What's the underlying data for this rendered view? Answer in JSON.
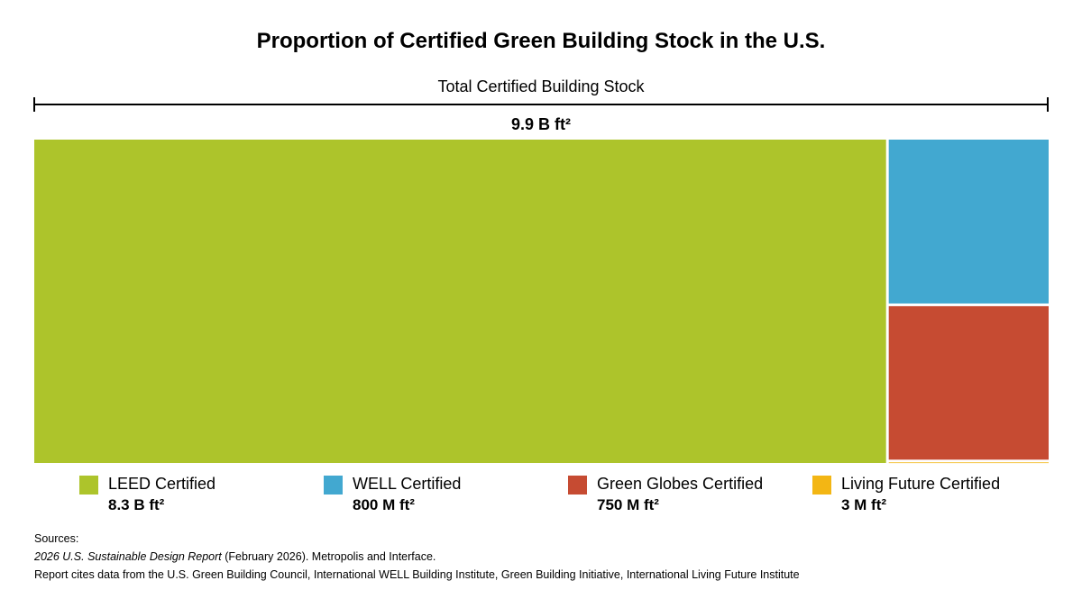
{
  "chart_data": {
    "type": "treemap",
    "title": "Proportion of Certified Green Building Stock in the U.S.",
    "total": {
      "label": "Total Certified Building Stock",
      "value_label": "9.9 B ft²",
      "value": 9.9,
      "unit": "B ft²"
    },
    "categories": [
      "LEED Certified",
      "WELL Certified",
      "Green Globes Certified",
      "Living Future Certified"
    ],
    "values_sqft": [
      8300000000,
      800000000,
      750000000,
      3000000
    ],
    "value_labels": [
      "8.3 B ft²",
      "800 M ft²",
      "750 M ft²",
      "3 M ft²"
    ],
    "colors": [
      "#adc42b",
      "#42a8d0",
      "#c64b32",
      "#f3b614"
    ],
    "legend_position": "bottom"
  },
  "sources": {
    "heading": "Sources:",
    "report_title": "2026 U.S. Sustainable Design Report",
    "report_rest": " (February 2026).  Metropolis and Interface.",
    "note": "Report cites data from the U.S. Green Building Council, International WELL Building Institute, Green Building Initiative, International Living Future Institute"
  }
}
